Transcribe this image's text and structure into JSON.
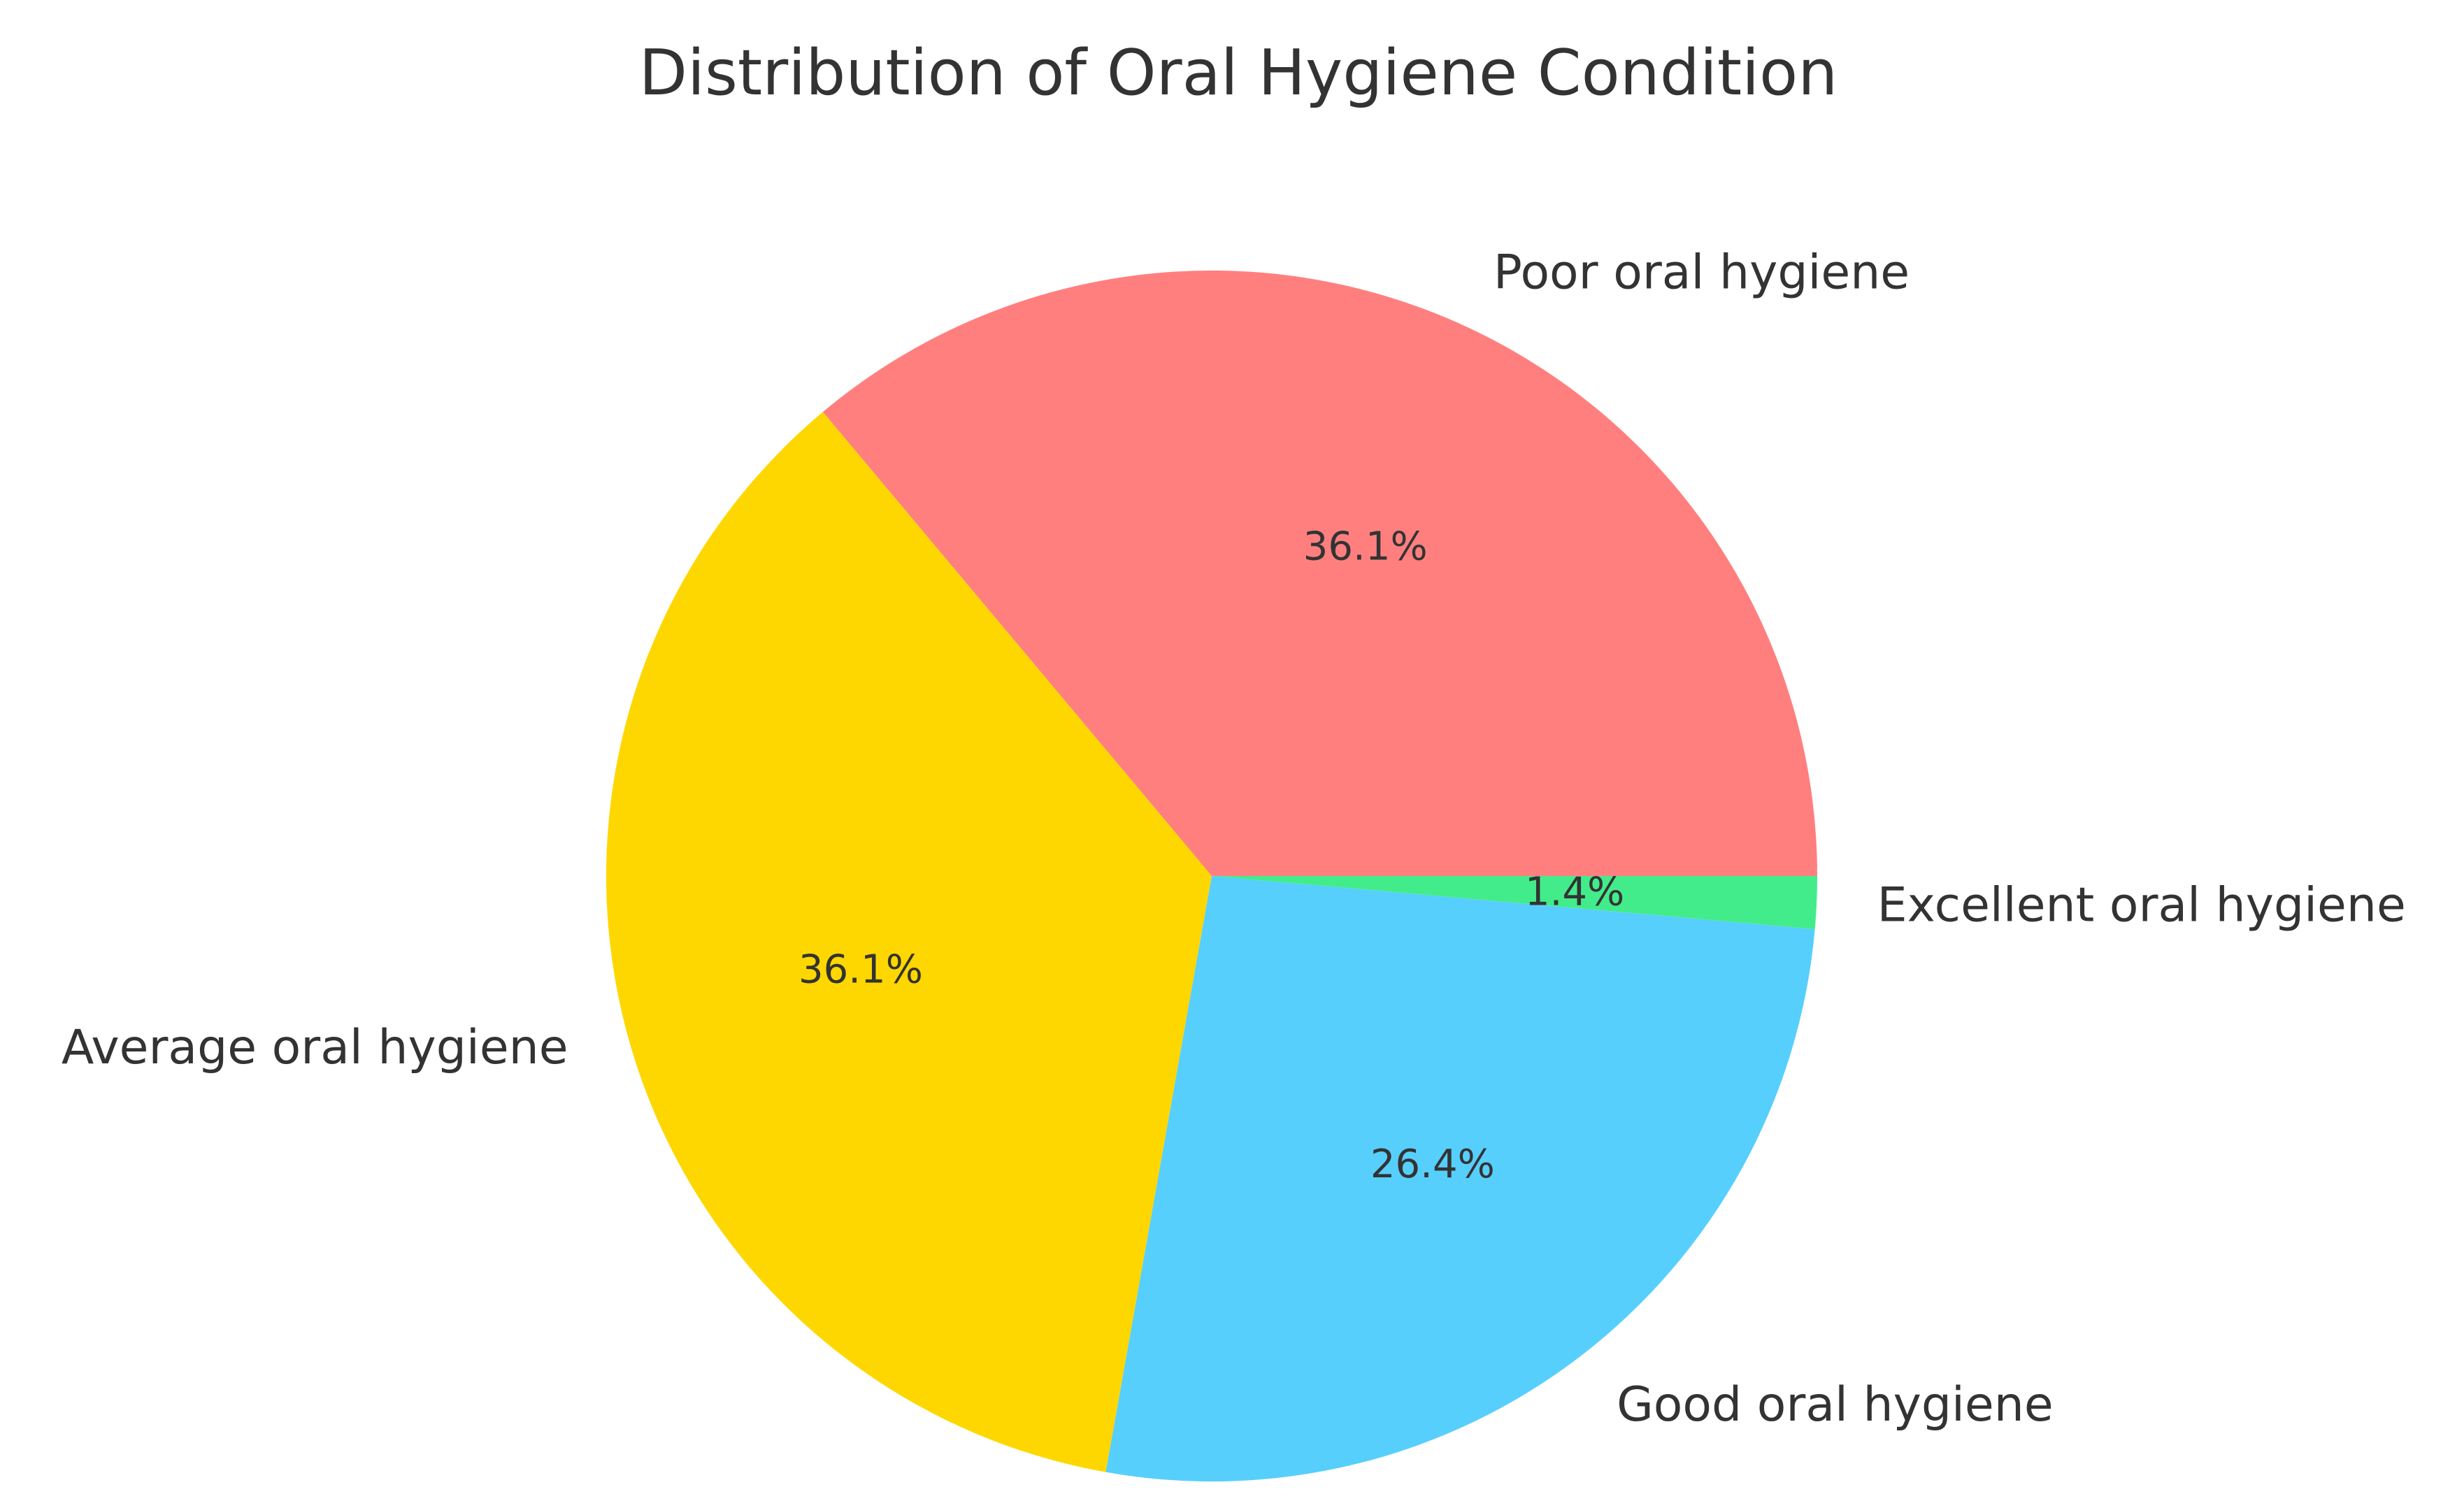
{
  "chart_data": {
    "type": "pie",
    "title": "Distribution of Oral Hygiene Condition",
    "start_angle_deg": 0,
    "direction": "counterclockwise",
    "slices": [
      {
        "label": "Poor oral hygiene",
        "value": 36.1,
        "pct_label": "36.1%",
        "color": "#FF7F7F"
      },
      {
        "label": "Average oral hygiene",
        "value": 36.1,
        "pct_label": "36.1%",
        "color": "#FFD700"
      },
      {
        "label": "Good oral hygiene",
        "value": 26.4,
        "pct_label": "26.4%",
        "color": "#57CFFD"
      },
      {
        "label": "Excellent oral hygiene",
        "value": 1.4,
        "pct_label": "1.4%",
        "color": "#43EC8A"
      }
    ]
  }
}
